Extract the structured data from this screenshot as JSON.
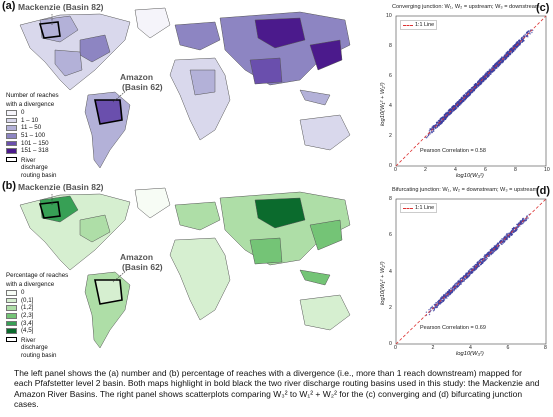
{
  "panels": {
    "a": {
      "label": "(a)",
      "basin1": "Mackenzie (Basin 82)",
      "basin2_l1": "Amazon",
      "basin2_l2": "(Basin 62)"
    },
    "b": {
      "label": "(b)",
      "basin1": "Mackenzie (Basin 82)",
      "basin2_l1": "Amazon",
      "basin2_l2": "(Basin 62)"
    },
    "c": {
      "label": "(c)",
      "title": "Converging junction: W₁, W₂ = upstream; W₃ = downstream",
      "legend": "1:1 Line",
      "pearson": "Pearson Correlation = 0.58",
      "xlabel": "log10(W₃²)",
      "ylabel": "log10(W₁² + W₂²)"
    },
    "d": {
      "label": "(d)",
      "title": "Bifurcating junction: W₁, W₂ = downstream; W₃ = upstream",
      "legend": "1:1 Line",
      "pearson": "Pearson Correlation = 0.69",
      "xlabel": "log10(W₃²)",
      "ylabel": "log10(W₁² + W₂²)"
    }
  },
  "legend_a": {
    "title_l1": "Number of reaches",
    "title_l2": "with a divergence",
    "items": [
      {
        "label": "0",
        "color": "#f5f4fa"
      },
      {
        "label": "1 – 10",
        "color": "#d9d8ec"
      },
      {
        "label": "11 – 50",
        "color": "#b3b1d8"
      },
      {
        "label": "51 – 100",
        "color": "#8d85c2"
      },
      {
        "label": "101 – 150",
        "color": "#6a4fad"
      },
      {
        "label": "151 – 318",
        "color": "#4b1a8c"
      }
    ],
    "outline": "River discharge routing basin"
  },
  "legend_b": {
    "title_l1": "Percentage of reaches",
    "title_l2": "with a divergence",
    "items": [
      {
        "label": "0",
        "color": "#f7fcf5"
      },
      {
        "label": "(0,1]",
        "color": "#d6efd0"
      },
      {
        "label": "(1,2]",
        "color": "#aedea7"
      },
      {
        "label": "(2,3]",
        "color": "#74c476"
      },
      {
        "label": "(3,4]",
        "color": "#37a055"
      },
      {
        "label": "(4,5]",
        "color": "#0b6b2d"
      }
    ],
    "outline": "River discharge routing basin"
  },
  "scatter_c_ticks_x": [
    "0",
    "2",
    "4",
    "6",
    "8",
    "10"
  ],
  "scatter_c_ticks_y": [
    "10",
    "8",
    "6",
    "4",
    "2",
    "0"
  ],
  "scatter_d_ticks_x": [
    "0",
    "2",
    "4",
    "6",
    "8"
  ],
  "scatter_d_ticks_y": [
    "8",
    "6",
    "4",
    "2",
    "0"
  ],
  "caption": "The left panel shows the (a) number and (b) percentage of reaches with a divergence (i.e., more than 1 reach downstream) mapped for each Pfafstetter level 2 basin. Both maps highlight in bold black the two river discharge routing basins used in this study: the Mackenzie and Amazon River Basins. The right panel shows scatterplots comparing W₃² to W₁² + W₂² for the (c) converging and (d) bifurcating junction cases."
}
